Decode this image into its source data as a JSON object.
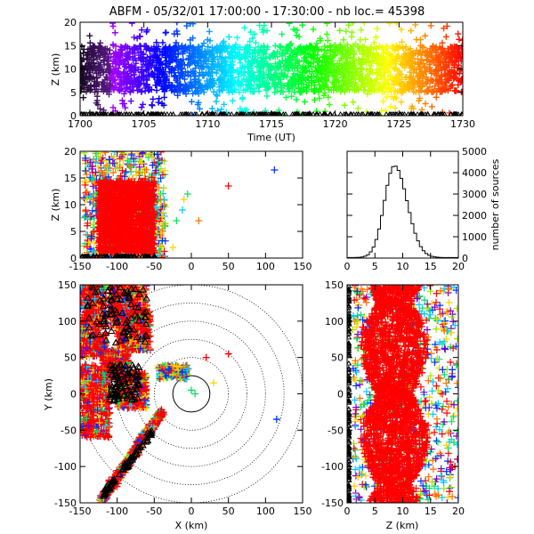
{
  "title": "ABFM - 05/32/01 17:00:00 - 17:30:00 - nb loc.= 45398",
  "chart_data": [
    {
      "id": "time-height",
      "type": "scatter",
      "xlabel": "Time (UT)",
      "ylabel": "Z (km)",
      "xlim": [
        1700,
        1730
      ],
      "ylim": [
        0,
        20
      ],
      "xticks": [
        "1700",
        "1705",
        "1710",
        "1715",
        "1720",
        "1725",
        "1730"
      ],
      "yticks": [
        "0",
        "5",
        "10",
        "15",
        "20"
      ],
      "color_scale": "time (purple → red)",
      "z_core": [
        5,
        15
      ]
    },
    {
      "id": "x-height",
      "type": "scatter",
      "xlabel": "",
      "ylabel": "Z (km)",
      "xlim": [
        -150,
        150
      ],
      "ylim": [
        0,
        20
      ],
      "xticks": [
        "-150",
        "-100",
        "-50",
        "0",
        "50",
        "100",
        "150"
      ],
      "yticks": [
        "0",
        "5",
        "10",
        "15",
        "20"
      ]
    },
    {
      "id": "height-histogram",
      "type": "line",
      "xlabel": "",
      "ylabel": "number of sources",
      "xlim": [
        0,
        20
      ],
      "ylim": [
        0,
        5000
      ],
      "xticks": [
        "0",
        "5",
        "10",
        "15",
        "20"
      ],
      "yticks": [
        "0",
        "1000",
        "2000",
        "3000",
        "4000",
        "5000"
      ],
      "bin_km": 0.5,
      "peak_km": 8.5,
      "peak_count": 4300
    },
    {
      "id": "plan-view",
      "type": "scatter",
      "xlabel": "X (km)",
      "ylabel": "Y (km)",
      "xlim": [
        -150,
        150
      ],
      "ylim": [
        -150,
        150
      ],
      "xticks": [
        "-150",
        "-100",
        "-50",
        "0",
        "50",
        "100",
        "150"
      ],
      "yticks": [
        "-150",
        "-100",
        "-50",
        "0",
        "50",
        "100",
        "150"
      ],
      "range_rings_km": [
        25,
        50,
        75,
        100,
        125,
        150
      ]
    },
    {
      "id": "height-y",
      "type": "scatter",
      "xlabel": "Z (km)",
      "ylabel": "",
      "xlim": [
        0,
        20
      ],
      "ylim": [
        -150,
        150
      ],
      "xticks": [
        "0",
        "5",
        "10",
        "15",
        "20"
      ],
      "yticks": [
        "-150",
        "-100",
        "-50",
        "0",
        "50",
        "100",
        "150"
      ]
    }
  ]
}
